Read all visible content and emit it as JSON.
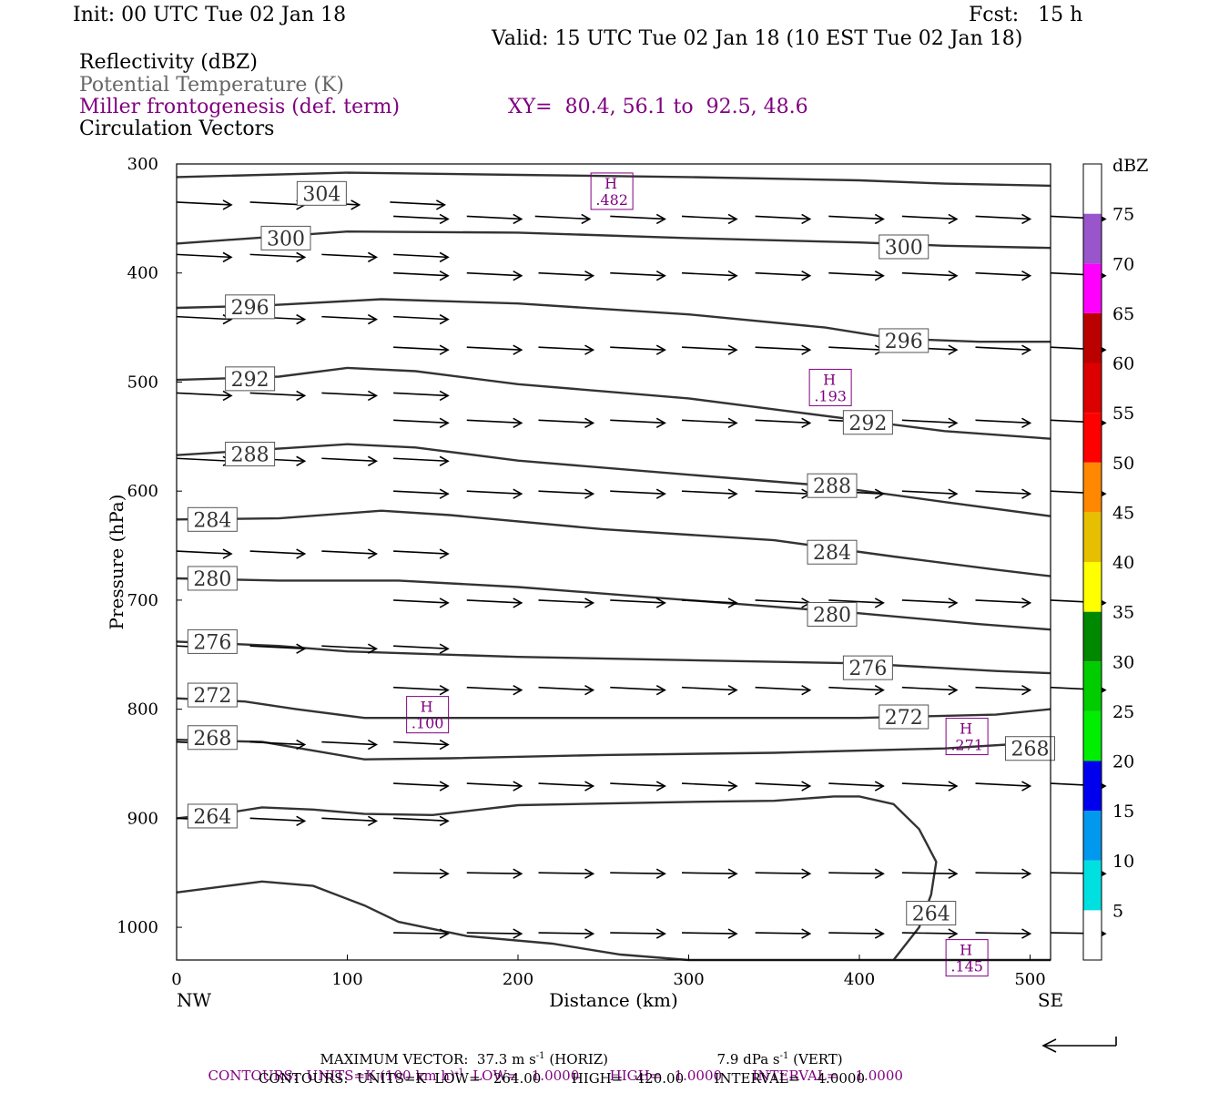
{
  "header": {
    "init": "Init: 00 UTC Tue 02 Jan 18",
    "fcst": "Fcst:   15 h",
    "valid": "Valid: 15 UTC Tue 02 Jan 18 (10 EST Tue 02 Jan 18)",
    "fields": [
      "Reflectivity (dBZ)",
      "Potential Temperature (K)",
      "Miller frontogenesis (def. term)",
      "Circulation Vectors"
    ],
    "xy": "XY=  80.4, 56.1 to  92.5, 48.6"
  },
  "colors": {
    "purple": "#800080",
    "contour": "#333333",
    "colorbar": [
      "#ffffff",
      "#00e0e0",
      "#0099ee",
      "#0000ee",
      "#00ee00",
      "#00cc00",
      "#008800",
      "#ffff00",
      "#e6c000",
      "#ff8800",
      "#ff0000",
      "#dd0000",
      "#bb0000",
      "#ff00ff",
      "#9955cc",
      "#ffffff"
    ]
  },
  "chart_data": {
    "type": "cross-section",
    "xlabel": "Distance (km)",
    "ylabel": "Pressure (hPa)",
    "x_ticks": [
      0,
      100,
      200,
      300,
      400,
      500
    ],
    "y_ticks": [
      300,
      400,
      500,
      600,
      700,
      800,
      900,
      1000
    ],
    "xlim": [
      0,
      512
    ],
    "ylim": [
      1030,
      300
    ],
    "x_end_labels": {
      "left": "NW",
      "right": "SE"
    },
    "theta_contours": [
      {
        "label": "304",
        "points": [
          [
            0,
            312
          ],
          [
            100,
            308
          ],
          [
            200,
            310
          ],
          [
            300,
            312
          ],
          [
            400,
            315
          ],
          [
            450,
            318
          ],
          [
            512,
            320
          ]
        ]
      },
      {
        "label": "300",
        "points": [
          [
            0,
            373
          ],
          [
            100,
            362
          ],
          [
            200,
            363
          ],
          [
            300,
            368
          ],
          [
            400,
            372
          ],
          [
            450,
            375
          ],
          [
            512,
            377
          ]
        ]
      },
      {
        "label": "296",
        "points": [
          [
            0,
            432
          ],
          [
            50,
            430
          ],
          [
            120,
            424
          ],
          [
            200,
            428
          ],
          [
            300,
            438
          ],
          [
            380,
            450
          ],
          [
            420,
            460
          ],
          [
            470,
            463
          ],
          [
            512,
            463
          ]
        ]
      },
      {
        "label": "292",
        "points": [
          [
            0,
            498
          ],
          [
            60,
            495
          ],
          [
            100,
            487
          ],
          [
            140,
            490
          ],
          [
            200,
            502
          ],
          [
            300,
            515
          ],
          [
            350,
            525
          ],
          [
            400,
            535
          ],
          [
            450,
            545
          ],
          [
            512,
            552
          ]
        ]
      },
      {
        "label": "288",
        "points": [
          [
            0,
            567
          ],
          [
            70,
            560
          ],
          [
            100,
            557
          ],
          [
            140,
            560
          ],
          [
            200,
            572
          ],
          [
            300,
            585
          ],
          [
            380,
            595
          ],
          [
            450,
            610
          ],
          [
            512,
            623
          ]
        ]
      },
      {
        "label": "284",
        "points": [
          [
            0,
            626
          ],
          [
            60,
            625
          ],
          [
            120,
            618
          ],
          [
            160,
            622
          ],
          [
            250,
            635
          ],
          [
            350,
            645
          ],
          [
            420,
            660
          ],
          [
            480,
            672
          ],
          [
            512,
            678
          ]
        ]
      },
      {
        "label": "280",
        "points": [
          [
            0,
            680
          ],
          [
            60,
            682
          ],
          [
            130,
            682
          ],
          [
            200,
            688
          ],
          [
            300,
            700
          ],
          [
            400,
            712
          ],
          [
            470,
            722
          ],
          [
            512,
            727
          ]
        ]
      },
      {
        "label": "276",
        "points": [
          [
            0,
            738
          ],
          [
            60,
            742
          ],
          [
            100,
            747
          ],
          [
            200,
            752
          ],
          [
            300,
            755
          ],
          [
            400,
            758
          ],
          [
            480,
            765
          ],
          [
            512,
            767
          ]
        ]
      },
      {
        "label": "272",
        "points": [
          [
            0,
            790
          ],
          [
            40,
            793
          ],
          [
            70,
            800
          ],
          [
            110,
            808
          ],
          [
            200,
            808
          ],
          [
            300,
            808
          ],
          [
            400,
            808
          ],
          [
            480,
            805
          ],
          [
            512,
            800
          ]
        ]
      },
      {
        "label": "268",
        "points": [
          [
            0,
            828
          ],
          [
            50,
            830
          ],
          [
            80,
            838
          ],
          [
            110,
            846
          ],
          [
            160,
            845
          ],
          [
            250,
            842
          ],
          [
            350,
            840
          ],
          [
            450,
            836
          ],
          [
            512,
            830
          ]
        ]
      },
      {
        "label": "264",
        "points": [
          [
            0,
            900
          ],
          [
            30,
            895
          ],
          [
            50,
            890
          ],
          [
            80,
            892
          ],
          [
            110,
            896
          ],
          [
            150,
            897
          ],
          [
            200,
            888
          ],
          [
            300,
            885
          ],
          [
            350,
            884
          ],
          [
            385,
            880
          ],
          [
            400,
            880
          ],
          [
            420,
            887
          ],
          [
            435,
            910
          ],
          [
            445,
            940
          ],
          [
            442,
            970
          ],
          [
            435,
            1000
          ],
          [
            425,
            1020
          ],
          [
            420,
            1030
          ]
        ]
      },
      {
        "label": "",
        "points": [
          [
            0,
            968
          ],
          [
            30,
            962
          ],
          [
            50,
            958
          ],
          [
            80,
            962
          ],
          [
            110,
            980
          ],
          [
            130,
            995
          ],
          [
            170,
            1008
          ],
          [
            220,
            1015
          ],
          [
            260,
            1025
          ],
          [
            300,
            1030
          ],
          [
            420,
            1030
          ],
          [
            512,
            1030
          ]
        ]
      }
    ],
    "contour_labels": [
      {
        "text": "304",
        "x": 85,
        "p": 327
      },
      {
        "text": "300",
        "x": 64,
        "p": 368
      },
      {
        "text": "300",
        "x": 426,
        "p": 376
      },
      {
        "text": "296",
        "x": 43,
        "p": 431
      },
      {
        "text": "296",
        "x": 426,
        "p": 462
      },
      {
        "text": "292",
        "x": 43,
        "p": 497
      },
      {
        "text": "292",
        "x": 405,
        "p": 537
      },
      {
        "text": "288",
        "x": 43,
        "p": 566
      },
      {
        "text": "288",
        "x": 384,
        "p": 595
      },
      {
        "text": "284",
        "x": 21,
        "p": 626
      },
      {
        "text": "284",
        "x": 384,
        "p": 656
      },
      {
        "text": "280",
        "x": 21,
        "p": 680
      },
      {
        "text": "280",
        "x": 384,
        "p": 713
      },
      {
        "text": "276",
        "x": 21,
        "p": 738
      },
      {
        "text": "276",
        "x": 405,
        "p": 762
      },
      {
        "text": "272",
        "x": 21,
        "p": 787
      },
      {
        "text": "272",
        "x": 426,
        "p": 807
      },
      {
        "text": "268",
        "x": 21,
        "p": 826
      },
      {
        "text": "268",
        "x": 500,
        "p": 836
      },
      {
        "text": "264",
        "x": 21,
        "p": 898
      },
      {
        "text": "264",
        "x": 442,
        "p": 987
      }
    ],
    "frontogenesis_maxima": [
      {
        "label": "H",
        "value": ".482",
        "x": 255,
        "p": 325
      },
      {
        "label": "H",
        "value": ".193",
        "x": 383,
        "p": 505
      },
      {
        "label": "H",
        "value": ".100",
        "x": 147,
        "p": 805
      },
      {
        "label": "H",
        "value": ".271",
        "x": 463,
        "p": 825
      },
      {
        "label": "H",
        "value": ".145",
        "x": 463,
        "p": 1028
      }
    ],
    "vector_rows": [
      {
        "p": 335,
        "x": [
          0,
          43,
          75,
          125
        ]
      },
      {
        "p": 348,
        "x": [
          127,
          170,
          210,
          254,
          296,
          339,
          382,
          425,
          468,
          512
        ]
      },
      {
        "p": 383,
        "x": [
          0,
          43,
          85,
          127
        ]
      },
      {
        "p": 400,
        "x": [
          127,
          170,
          212,
          254,
          296,
          339,
          382,
          425,
          468,
          512
        ]
      },
      {
        "p": 440,
        "x": [
          0,
          43,
          85,
          127
        ]
      },
      {
        "p": 468,
        "x": [
          127,
          170,
          212,
          254,
          296,
          339,
          382,
          425,
          468,
          512
        ]
      },
      {
        "p": 510,
        "x": [
          0,
          43,
          85,
          127
        ]
      },
      {
        "p": 535,
        "x": [
          127,
          170,
          212,
          254,
          296,
          339,
          382,
          425,
          468,
          512
        ]
      },
      {
        "p": 570,
        "x": [
          0,
          43,
          85,
          127
        ]
      },
      {
        "p": 600,
        "x": [
          127,
          170,
          212,
          254,
          296,
          339,
          382,
          425,
          468,
          512
        ]
      },
      {
        "p": 655,
        "x": [
          0,
          43,
          85,
          127
        ]
      },
      {
        "p": 700,
        "x": [
          127,
          170,
          212,
          254,
          296,
          339,
          382,
          425,
          468,
          512
        ]
      },
      {
        "p": 742,
        "x": [
          0,
          43,
          85,
          127
        ]
      },
      {
        "p": 780,
        "x": [
          127,
          170,
          212,
          254,
          296,
          339,
          382,
          425,
          468,
          512
        ]
      },
      {
        "p": 830,
        "x": [
          0,
          43,
          85,
          127
        ]
      },
      {
        "p": 868,
        "x": [
          127,
          170,
          212,
          254,
          296,
          339,
          382,
          425,
          468,
          512
        ]
      },
      {
        "p": 900,
        "x": [
          0,
          43,
          85,
          127
        ]
      },
      {
        "p": 950,
        "x": [
          127,
          170,
          212,
          254,
          296,
          339,
          382,
          425,
          468,
          512
        ]
      },
      {
        "p": 1005,
        "x": [
          127,
          170,
          212,
          254,
          296,
          339,
          382,
          425,
          468,
          512
        ]
      }
    ],
    "colorbar": {
      "unit": "dBZ",
      "levels": [
        5,
        10,
        15,
        20,
        25,
        30,
        35,
        40,
        45,
        50,
        55,
        60,
        65,
        70,
        75
      ]
    }
  },
  "footer": {
    "max_vector_prefix": "MAXIMUM VECTOR:  37.3 m s",
    "max_vector_horiz": "(HORIZ)",
    "max_vector_vert_prefix": "7.9 dPa s",
    "max_vector_vert": "(VERT)",
    "exp": "-1",
    "contours1_a": "CONTOURS:  UNITS=K (100 km h)",
    "contours1_b": "LOW=   1.0000       HIGH=   1.0000       INTERVAL=    1.0000",
    "contours2": "CONTOURS:  UNITS=K  LOW=   264.00       HIGH=   420.00       INTERVAL=    4.0000"
  }
}
